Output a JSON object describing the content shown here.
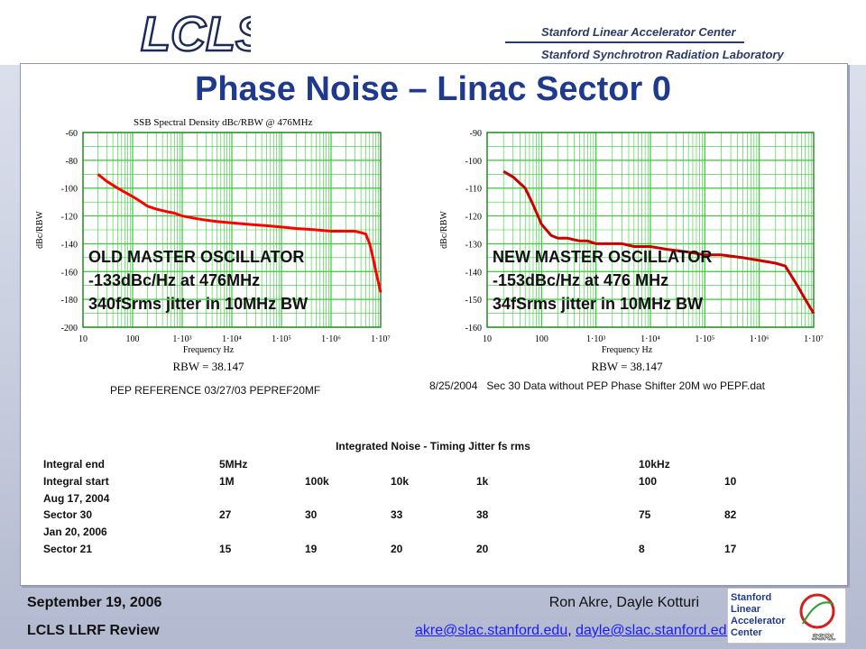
{
  "header": {
    "logo_text": "LCLS",
    "institution_1": "Stanford Linear Accelerator Center",
    "institution_2": "Stanford Synchrotron Radiation Laboratory"
  },
  "slide": {
    "title": "Phase Noise – Linac Sector 0"
  },
  "chart_data": [
    {
      "type": "line",
      "title": "SSB Spectral Density dBc/RBW @ 476MHz",
      "xlabel": "Frequency Hz",
      "ylabel": "dBc/RBW",
      "x_scale": "log",
      "xlim": [
        10,
        10000000
      ],
      "ylim": [
        -200,
        -60
      ],
      "x_ticks": [
        "10",
        "100",
        "1·10³",
        "1·10⁴",
        "1·10⁵",
        "1·10⁶",
        "1·10⁷"
      ],
      "y_ticks": [
        "-60",
        "-80",
        "-100",
        "-120",
        "-140",
        "-160",
        "-180",
        "-200"
      ],
      "grid": true,
      "series": [
        {
          "color": "#ff0000",
          "x": [
            20,
            30,
            50,
            70,
            100,
            150,
            200,
            300,
            500,
            700,
            1000,
            2000,
            3000,
            5000,
            10000,
            20000,
            50000,
            100000,
            200000,
            500000,
            1000000,
            2000000,
            3000000,
            4000000,
            5000000,
            6000000,
            7000000,
            8000000,
            10000000
          ],
          "y": [
            -90,
            -95,
            -100,
            -103,
            -106,
            -110,
            -113,
            -115,
            -117,
            -118,
            -120,
            -122,
            -123,
            -124,
            -125,
            -126,
            -127,
            -128,
            -129,
            -130,
            -131,
            -131,
            -131,
            -132,
            -133,
            -140,
            -150,
            -160,
            -175
          ]
        }
      ],
      "annotations": [
        "OLD MASTER OSCILLATOR",
        "-133dBc/Hz at 476MHz",
        "340fSrms jitter in 10MHz BW"
      ],
      "rbw_label": "RBW = 38.147",
      "caption": "PEP REFERENCE 03/27/03 PEPREF20MF"
    },
    {
      "type": "line",
      "title": "",
      "xlabel": "Frequency Hz",
      "ylabel": "dBc/RBW",
      "x_scale": "log",
      "xlim": [
        10,
        10000000
      ],
      "ylim": [
        -160,
        -90
      ],
      "x_ticks": [
        "10",
        "100",
        "1·10³",
        "1·10⁴",
        "1·10⁵",
        "1·10⁶",
        "1·10⁷"
      ],
      "y_ticks": [
        "-90",
        "-100",
        "-110",
        "-120",
        "-130",
        "-140",
        "-150",
        "-160"
      ],
      "grid": true,
      "series": [
        {
          "color": "#cc0000",
          "x": [
            20,
            30,
            50,
            70,
            100,
            150,
            200,
            300,
            500,
            700,
            1000,
            2000,
            3000,
            5000,
            10000,
            20000,
            50000,
            100000,
            200000,
            500000,
            1000000,
            2000000,
            3000000,
            5000000,
            7000000,
            10000000
          ],
          "y": [
            -104,
            -106,
            -110,
            -116,
            -123,
            -127,
            -128,
            -128,
            -129,
            -129,
            -130,
            -130,
            -130,
            -131,
            -131,
            -132,
            -133,
            -134,
            -134,
            -135,
            -136,
            -137,
            -138,
            -145,
            -150,
            -155
          ]
        }
      ],
      "annotations": [
        "NEW MASTER OSCILLATOR",
        "-153dBc/Hz at 476 MHz",
        "34fSrms jitter in 10MHz BW"
      ],
      "rbw_label": "RBW = 38.147",
      "caption": "8/25/2004   Sec 30 Data without PEP Phase Shifter 20M wo PEPF.dat"
    }
  ],
  "noise_table": {
    "title": "Integrated Noise - Timing Jitter fs rms",
    "rows": [
      [
        "Integral end",
        "5MHz",
        "",
        "",
        "",
        "10kHz",
        ""
      ],
      [
        "Integral start",
        "1M",
        "100k",
        "10k",
        "1k",
        "100",
        "10"
      ],
      [
        "Aug 17, 2004",
        "",
        "",
        "",
        "",
        "",
        ""
      ],
      [
        "Sector 30",
        "27",
        "30",
        "33",
        "38",
        "75",
        "82"
      ],
      [
        "Jan 20, 2006",
        "",
        "",
        "",
        "",
        "",
        ""
      ],
      [
        "Sector 21",
        "15",
        "19",
        "20",
        "20",
        "8",
        "17"
      ]
    ]
  },
  "footer": {
    "date": "September 19, 2006",
    "event": "LCLS LLRF Review",
    "authors": "Ron Akre, Dayle Kotturi",
    "email_1": "akre@slac.stanford.edu",
    "separator": ", ",
    "email_2": "dayle@slac.stanford.edu",
    "slac_logo_lines": [
      "Stanford",
      "Linear",
      "Accelerator",
      "Center"
    ],
    "ssrl_label": "SSRL"
  }
}
